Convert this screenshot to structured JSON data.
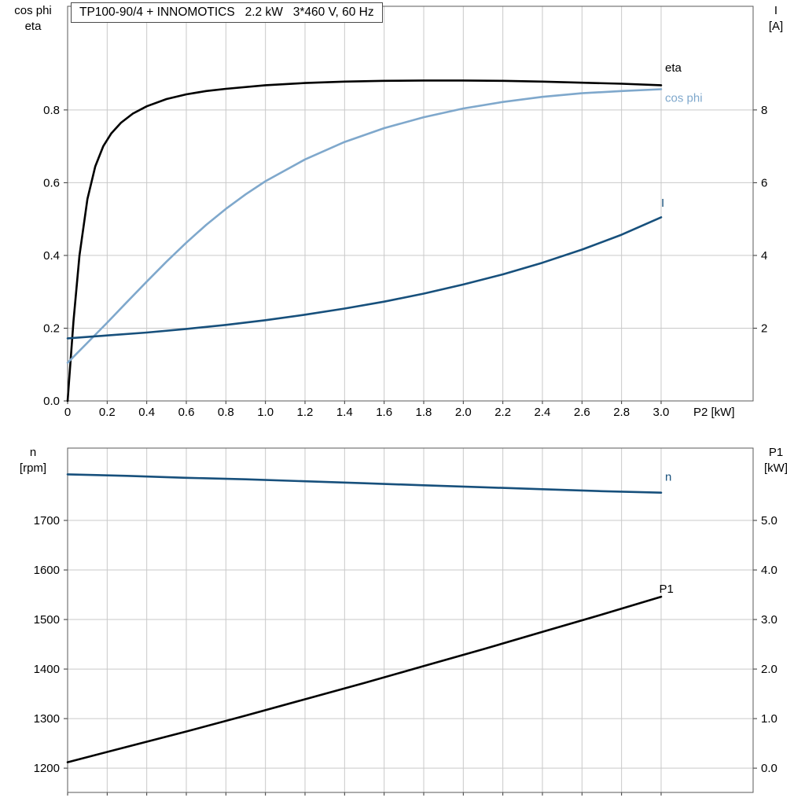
{
  "title": "TP100-90/4 + INNOMOTICS   2.2 kW   3*460 V, 60 Hz",
  "labels": {
    "top_left": [
      "cos phi",
      "eta"
    ],
    "top_right": [
      "I",
      "[A]"
    ],
    "bottom_left": [
      "n",
      "[rpm]"
    ],
    "bottom_right": [
      "P1",
      "[kW]"
    ],
    "x_axis": "P2 [kW]"
  },
  "colors": {
    "grid": "#c9c9c9",
    "border": "#5a5a5a",
    "tick": "#333333",
    "black": "#000000",
    "light_blue": "#7fa8cc",
    "dark_blue": "#17507c"
  },
  "chart_data": [
    {
      "id": "top",
      "type": "line",
      "title": "Motor efficiency, power factor and current vs shaft power",
      "x_axis": {
        "label": "P2 [kW]",
        "range": [
          0,
          3.465
        ],
        "ticks": [
          0,
          0.2,
          0.4,
          0.6,
          0.8,
          1.0,
          1.2,
          1.4,
          1.6,
          1.8,
          2.0,
          2.2,
          2.4,
          2.6,
          2.8,
          3.0
        ],
        "tick_labels": [
          "0",
          "0.2",
          "0.4",
          "0.6",
          "0.8",
          "1.0",
          "1.2",
          "1.4",
          "1.6",
          "1.8",
          "2.0",
          "2.2",
          "2.4",
          "2.6",
          "2.8",
          "3.0"
        ],
        "show_tick_labels": true
      },
      "left_axis": {
        "label": "cos phi / eta",
        "range": [
          0,
          1.085
        ],
        "ticks": [
          0.0,
          0.2,
          0.4,
          0.6,
          0.8
        ],
        "tick_labels": [
          "0.0",
          "0.2",
          "0.4",
          "0.6",
          "0.8"
        ]
      },
      "right_axis": {
        "label": "I [A]",
        "range": [
          0,
          10.85
        ],
        "ticks": [
          2,
          4,
          6,
          8
        ],
        "tick_labels": [
          "2",
          "4",
          "6",
          "8"
        ]
      },
      "grid": true,
      "series": [
        {
          "name": "eta",
          "label": "eta",
          "color": "#000000",
          "axis": "left",
          "label_at": [
            3.02,
            0.916
          ],
          "points": [
            [
              0,
              0
            ],
            [
              0.03,
              0.22
            ],
            [
              0.06,
              0.4
            ],
            [
              0.1,
              0.555
            ],
            [
              0.14,
              0.645
            ],
            [
              0.18,
              0.7
            ],
            [
              0.22,
              0.735
            ],
            [
              0.27,
              0.765
            ],
            [
              0.33,
              0.79
            ],
            [
              0.4,
              0.81
            ],
            [
              0.5,
              0.83
            ],
            [
              0.6,
              0.843
            ],
            [
              0.7,
              0.852
            ],
            [
              0.8,
              0.858
            ],
            [
              1.0,
              0.868
            ],
            [
              1.2,
              0.874
            ],
            [
              1.4,
              0.878
            ],
            [
              1.6,
              0.88
            ],
            [
              1.8,
              0.881
            ],
            [
              2.0,
              0.881
            ],
            [
              2.2,
              0.88
            ],
            [
              2.4,
              0.878
            ],
            [
              2.6,
              0.875
            ],
            [
              2.8,
              0.872
            ],
            [
              3.0,
              0.868
            ]
          ]
        },
        {
          "name": "cos_phi",
          "label": "cos phi",
          "color": "#7fa8cc",
          "axis": "left",
          "label_at": [
            3.02,
            0.833
          ],
          "points": [
            [
              0,
              0.105
            ],
            [
              0.1,
              0.16
            ],
            [
              0.2,
              0.215
            ],
            [
              0.3,
              0.272
            ],
            [
              0.4,
              0.328
            ],
            [
              0.5,
              0.383
            ],
            [
              0.6,
              0.435
            ],
            [
              0.7,
              0.484
            ],
            [
              0.8,
              0.528
            ],
            [
              0.9,
              0.568
            ],
            [
              1.0,
              0.604
            ],
            [
              1.2,
              0.664
            ],
            [
              1.4,
              0.712
            ],
            [
              1.6,
              0.75
            ],
            [
              1.8,
              0.78
            ],
            [
              2.0,
              0.804
            ],
            [
              2.2,
              0.822
            ],
            [
              2.4,
              0.836
            ],
            [
              2.6,
              0.846
            ],
            [
              2.8,
              0.852
            ],
            [
              3.0,
              0.857
            ]
          ]
        },
        {
          "name": "I",
          "label": "I",
          "color": "#17507c",
          "axis": "right",
          "label_at": [
            3.0,
            5.45
          ],
          "points": [
            [
              0,
              1.72
            ],
            [
              0.2,
              1.8
            ],
            [
              0.4,
              1.88
            ],
            [
              0.6,
              1.98
            ],
            [
              0.8,
              2.09
            ],
            [
              1.0,
              2.22
            ],
            [
              1.2,
              2.37
            ],
            [
              1.4,
              2.54
            ],
            [
              1.6,
              2.73
            ],
            [
              1.8,
              2.95
            ],
            [
              2.0,
              3.2
            ],
            [
              2.2,
              3.48
            ],
            [
              2.4,
              3.8
            ],
            [
              2.6,
              4.16
            ],
            [
              2.8,
              4.57
            ],
            [
              3.0,
              5.05
            ]
          ]
        }
      ]
    },
    {
      "id": "bottom",
      "type": "line",
      "title": "Motor speed and input power vs shaft power",
      "x_axis": {
        "label": "P2 [kW]",
        "range": [
          0,
          3.465
        ],
        "ticks": [
          0,
          0.2,
          0.4,
          0.6,
          0.8,
          1.0,
          1.2,
          1.4,
          1.6,
          1.8,
          2.0,
          2.2,
          2.4,
          2.6,
          2.8,
          3.0
        ],
        "tick_labels": [],
        "show_tick_labels": false
      },
      "left_axis": {
        "label": "n [rpm]",
        "range": [
          1151,
          1846
        ],
        "ticks": [
          1200,
          1300,
          1400,
          1500,
          1600,
          1700
        ],
        "tick_labels": [
          "1200",
          "1300",
          "1400",
          "1500",
          "1600",
          "1700"
        ]
      },
      "right_axis": {
        "label": "P1 [kW]",
        "range": [
          -0.49,
          6.46
        ],
        "ticks": [
          0.0,
          1.0,
          2.0,
          3.0,
          4.0,
          5.0
        ],
        "tick_labels": [
          "0.0",
          "1.0",
          "2.0",
          "3.0",
          "4.0",
          "5.0"
        ]
      },
      "grid": true,
      "series": [
        {
          "name": "n",
          "label": "n",
          "color": "#17507c",
          "axis": "left",
          "label_at": [
            3.02,
            1788
          ],
          "points": [
            [
              0,
              1793
            ],
            [
              0.3,
              1790
            ],
            [
              0.6,
              1786
            ],
            [
              0.9,
              1783
            ],
            [
              1.2,
              1779
            ],
            [
              1.5,
              1775
            ],
            [
              1.8,
              1771
            ],
            [
              2.1,
              1767
            ],
            [
              2.4,
              1763
            ],
            [
              2.7,
              1759
            ],
            [
              3.0,
              1756
            ]
          ]
        },
        {
          "name": "P1",
          "label": "P1",
          "color": "#000000",
          "axis": "right",
          "label_at": [
            2.99,
            3.62
          ],
          "points": [
            [
              0,
              0.12
            ],
            [
              0.3,
              0.43
            ],
            [
              0.6,
              0.74
            ],
            [
              0.9,
              1.06
            ],
            [
              1.2,
              1.39
            ],
            [
              1.5,
              1.72
            ],
            [
              1.8,
              2.06
            ],
            [
              2.1,
              2.4
            ],
            [
              2.4,
              2.75
            ],
            [
              2.7,
              3.1
            ],
            [
              3.0,
              3.46
            ]
          ]
        }
      ]
    }
  ]
}
